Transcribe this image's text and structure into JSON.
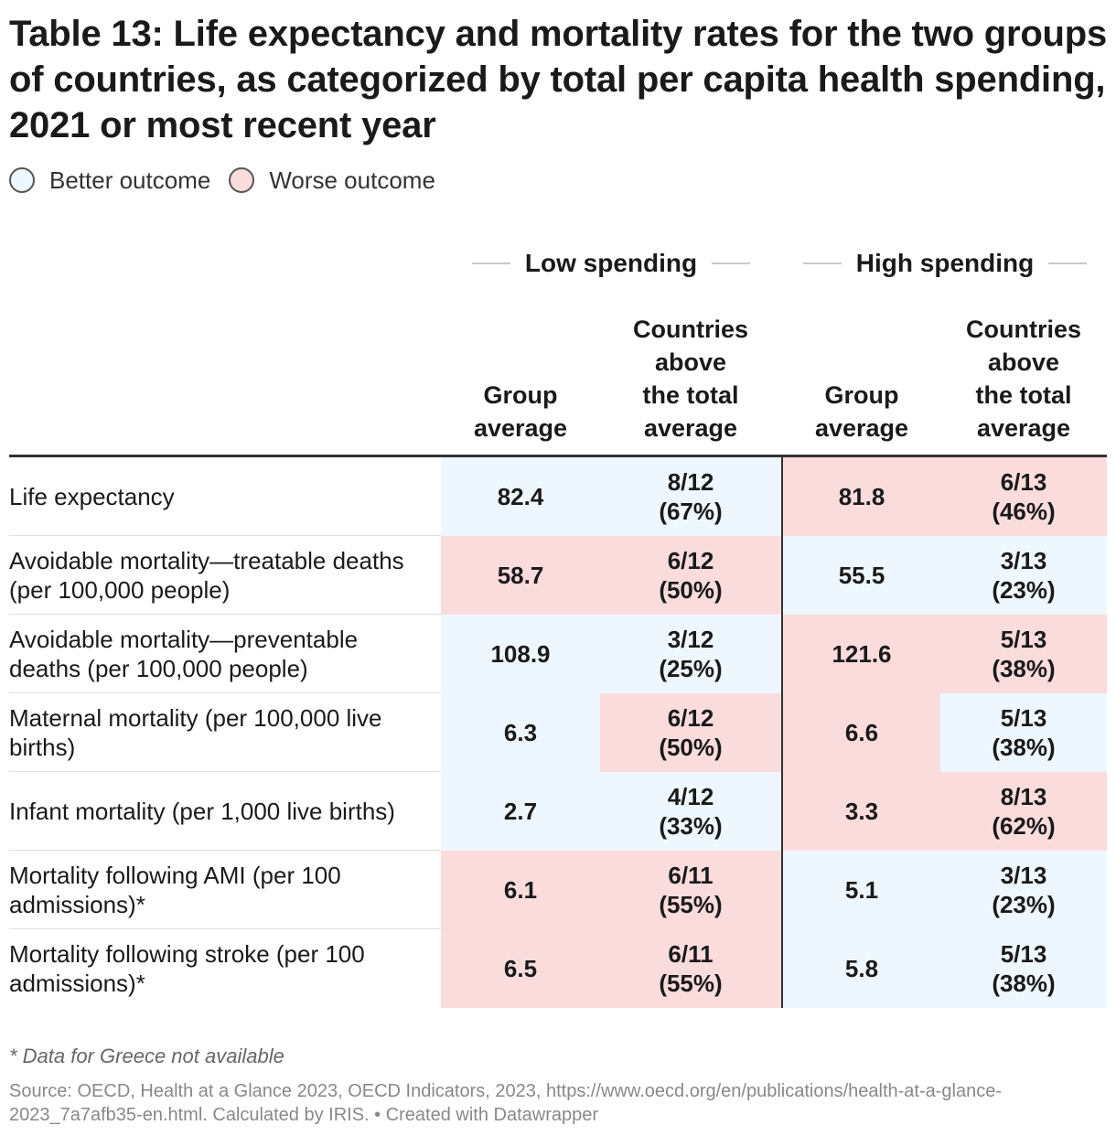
{
  "title": "Table 13: Life expectancy and mortality rates for the two groups of countries, as categorized by total per capita health spending, 2021 or most recent year",
  "legend": {
    "better": "Better outcome",
    "worse": "Worse outcome",
    "colors": {
      "better": "#eef7fd",
      "worse": "#fbdcdd"
    }
  },
  "groups": {
    "low": "Low spending",
    "high": "High spending"
  },
  "columns": {
    "group_average": [
      "Group",
      "average"
    ],
    "countries_above": [
      "Countries",
      "above",
      "the total",
      "average"
    ]
  },
  "rows": [
    {
      "label": "Life expectancy",
      "low_avg": "82.4",
      "low_avg_status": "better",
      "low_count": "8/12",
      "low_pct": "(67%)",
      "low_count_status": "better",
      "high_avg": "81.8",
      "high_avg_status": "worse",
      "high_count": "6/13",
      "high_pct": "(46%)",
      "high_count_status": "worse"
    },
    {
      "label": "Avoidable mortality—treatable deaths (per 100,000 people)",
      "low_avg": "58.7",
      "low_avg_status": "worse",
      "low_count": "6/12",
      "low_pct": "(50%)",
      "low_count_status": "worse",
      "high_avg": "55.5",
      "high_avg_status": "better",
      "high_count": "3/13",
      "high_pct": "(23%)",
      "high_count_status": "better"
    },
    {
      "label": "Avoidable mortality—preventable deaths (per 100,000 people)",
      "low_avg": "108.9",
      "low_avg_status": "better",
      "low_count": "3/12",
      "low_pct": "(25%)",
      "low_count_status": "better",
      "high_avg": "121.6",
      "high_avg_status": "worse",
      "high_count": "5/13",
      "high_pct": "(38%)",
      "high_count_status": "worse"
    },
    {
      "label": "Maternal mortality (per 100,000 live births)",
      "low_avg": "6.3",
      "low_avg_status": "better",
      "low_count": "6/12",
      "low_pct": "(50%)",
      "low_count_status": "worse",
      "high_avg": "6.6",
      "high_avg_status": "worse",
      "high_count": "5/13",
      "high_pct": "(38%)",
      "high_count_status": "better"
    },
    {
      "label": "Infant mortality (per 1,000 live births)",
      "low_avg": "2.7",
      "low_avg_status": "better",
      "low_count": "4/12",
      "low_pct": "(33%)",
      "low_count_status": "better",
      "high_avg": "3.3",
      "high_avg_status": "worse",
      "high_count": "8/13",
      "high_pct": "(62%)",
      "high_count_status": "worse"
    },
    {
      "label": "Mortality following AMI (per 100 admissions)*",
      "low_avg": "6.1",
      "low_avg_status": "worse",
      "low_count": "6/11",
      "low_pct": "(55%)",
      "low_count_status": "worse",
      "high_avg": "5.1",
      "high_avg_status": "better",
      "high_count": "3/13",
      "high_pct": "(23%)",
      "high_count_status": "better"
    },
    {
      "label": "Mortality following stroke (per 100 admissions)*",
      "low_avg": "6.5",
      "low_avg_status": "worse",
      "low_count": "6/11",
      "low_pct": "(55%)",
      "low_count_status": "worse",
      "high_avg": "5.8",
      "high_avg_status": "better",
      "high_count": "5/13",
      "high_pct": "(38%)",
      "high_count_status": "better"
    }
  ],
  "note": "* Data for Greece not available",
  "source": "Source: OECD, Health at a Glance 2023, OECD Indicators, 2023, https://www.oecd.org/en/publications/health-at-a-glance-2023_7a7afb35-en.html. Calculated by IRIS. • Created with Datawrapper"
}
